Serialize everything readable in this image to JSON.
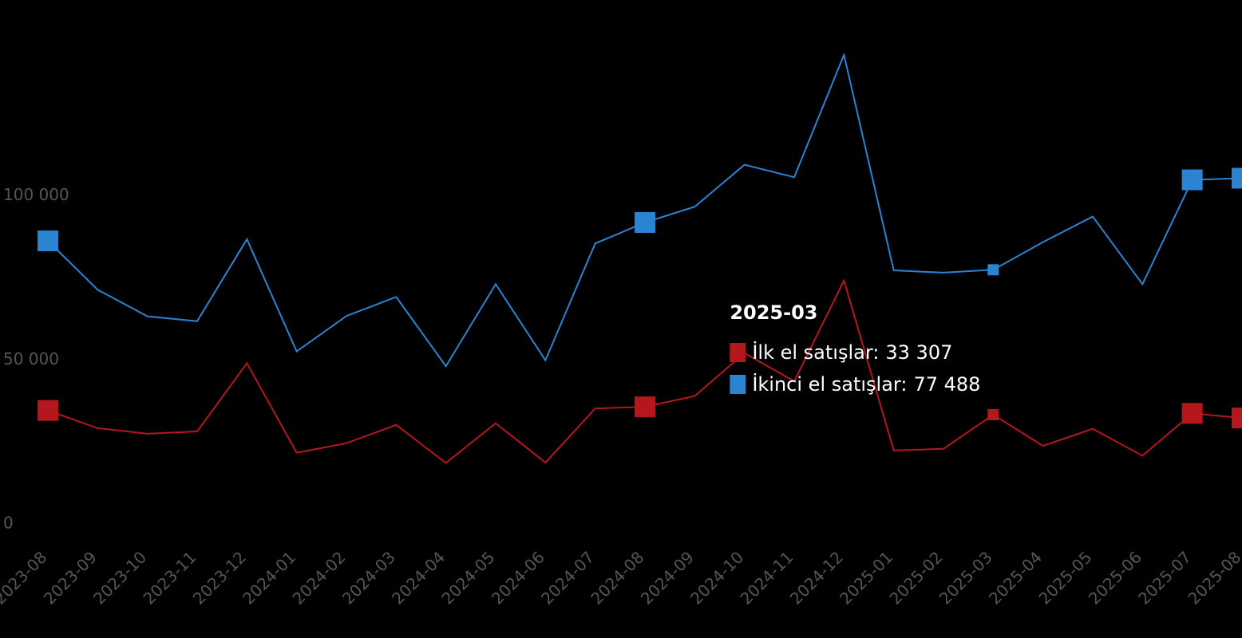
{
  "chart_data": {
    "type": "line",
    "categories": [
      "2023-08",
      "2023-09",
      "2023-10",
      "2023-11",
      "2023-12",
      "2024-01",
      "2024-02",
      "2024-03",
      "2024-04",
      "2024-05",
      "2024-06",
      "2024-07",
      "2024-08",
      "2024-09",
      "2024-10",
      "2024-11",
      "2024-12",
      "2025-01",
      "2025-02",
      "2025-03",
      "2025-04",
      "2025-05",
      "2025-06",
      "2025-07",
      "2025-08"
    ],
    "series": [
      {
        "name": "İlk el satışlar",
        "color": "#b5181c",
        "values": [
          34600,
          29200,
          27500,
          28200,
          49000,
          21700,
          24600,
          30200,
          18600,
          30700,
          18700,
          35200,
          35700,
          39000,
          52100,
          43500,
          74200,
          22400,
          22900,
          33307,
          23800,
          29000,
          20800,
          33700,
          32300
        ]
      },
      {
        "name": "İkinci el satışlar",
        "color": "#2a84d2",
        "values": [
          86300,
          71400,
          63300,
          61800,
          86800,
          52600,
          63400,
          69200,
          48100,
          73100,
          49900,
          85500,
          91900,
          96700,
          109500,
          105700,
          143000,
          77300,
          76600,
          77488,
          85900,
          93700,
          73100,
          104900,
          105400
        ]
      }
    ],
    "ylim": [
      0,
      150000
    ],
    "yticks": [
      0,
      {
        "value": 50000,
        "label": "50 000"
      },
      {
        "value": 100000,
        "label": "100 000"
      }
    ],
    "tooltip": {
      "title": "2025-03",
      "items": [
        {
          "label": "İlk el satışlar:",
          "value": "33 307"
        },
        {
          "label": "İkinci el satışlar:",
          "value": "77 488"
        }
      ]
    }
  }
}
